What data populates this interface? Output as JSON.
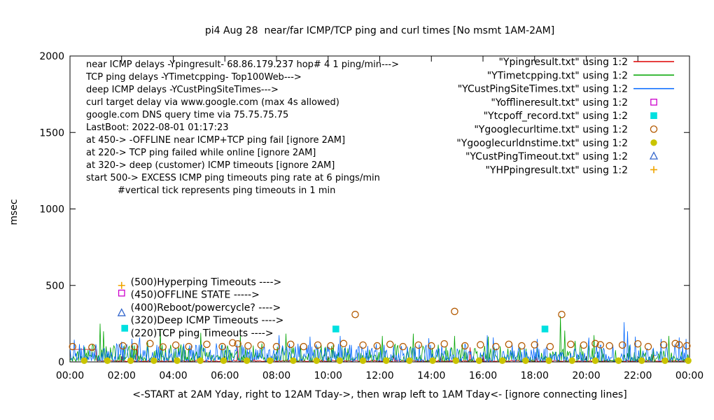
{
  "chart_data": {
    "type": "line",
    "title": "pi4 Aug 28  near/far ICMP/TCP ping and curl times [No msmt 1AM-2AM]",
    "xlabel": "<-START at 2AM Yday, right to 12AM Tday->, then wrap left to 1AM Tday<- [ignore connecting lines]",
    "ylabel": "msec",
    "xlim": [
      0,
      24
    ],
    "ylim": [
      0,
      2000
    ],
    "grid": false,
    "legend_position": "inside-top-right",
    "xticks": [
      {
        "v": 0,
        "label": "00:00"
      },
      {
        "v": 2,
        "label": "02:00"
      },
      {
        "v": 4,
        "label": "04:00"
      },
      {
        "v": 6,
        "label": "06:00"
      },
      {
        "v": 8,
        "label": "08:00"
      },
      {
        "v": 10,
        "label": "10:00"
      },
      {
        "v": 12,
        "label": "12:00"
      },
      {
        "v": 14,
        "label": "14:00"
      },
      {
        "v": 16,
        "label": "16:00"
      },
      {
        "v": 18,
        "label": "18:00"
      },
      {
        "v": 20,
        "label": "20:00"
      },
      {
        "v": 22,
        "label": "22:00"
      },
      {
        "v": 24,
        "label": "00:00"
      }
    ],
    "yticks": [
      {
        "v": 0,
        "label": "0"
      },
      {
        "v": 500,
        "label": "500"
      },
      {
        "v": 1000,
        "label": "1000"
      },
      {
        "v": 1500,
        "label": "1500"
      },
      {
        "v": 2000,
        "label": "2000"
      }
    ],
    "line_series": [
      {
        "name": "Ypingresult.txt",
        "legend": "\"Ypingresult.txt\" using 1:2",
        "color": "#dd0000",
        "baseline": 3,
        "amp": 9,
        "pow": 2.0,
        "spike_prob": 0.01,
        "spike_amp": 45,
        "seed": 101,
        "segments": [
          [
            0.0,
            1.0,
            82
          ]
        ],
        "spikes": [
          [
            2.6,
            110
          ],
          [
            6.5,
            90
          ],
          [
            15.5,
            95
          ]
        ]
      },
      {
        "name": "YTimetcpping.txt",
        "legend": "\"YTimetcpping.txt\" using 1:2",
        "color": "#00a400",
        "baseline": 4,
        "amp": 110,
        "pow": 2.6,
        "spike_prob": 0.05,
        "spike_amp": 90,
        "seed": 202,
        "segments": [],
        "spikes": [
          [
            1.15,
            250
          ],
          [
            1.3,
            200
          ],
          [
            3.5,
            205
          ],
          [
            5.05,
            190
          ],
          [
            6.6,
            175
          ],
          [
            8.35,
            185
          ],
          [
            12.1,
            170
          ],
          [
            13.3,
            185
          ],
          [
            14.9,
            170
          ],
          [
            16.2,
            165
          ],
          [
            19.0,
            300
          ],
          [
            19.15,
            205
          ],
          [
            20.3,
            175
          ],
          [
            23.2,
            170
          ]
        ]
      },
      {
        "name": "YCustPingSiteTimes.txt",
        "legend": "\"YCustPingSiteTimes.txt\" using 1:2",
        "color": "#0066ff",
        "baseline": 4,
        "amp": 115,
        "pow": 2.4,
        "spike_prob": 0.05,
        "spike_amp": 80,
        "seed": 303,
        "segments": [],
        "spikes": [
          [
            2.4,
            150
          ],
          [
            9.3,
            165
          ],
          [
            10.45,
            170
          ],
          [
            13.9,
            155
          ],
          [
            16.4,
            160
          ],
          [
            18.1,
            150
          ],
          [
            21.45,
            260
          ],
          [
            21.6,
            200
          ],
          [
            21.9,
            165
          ],
          [
            22.9,
            150
          ],
          [
            23.6,
            160
          ],
          [
            23.85,
            150
          ]
        ]
      }
    ],
    "marker_series": [
      {
        "name": "Yofflineresult.txt",
        "legend": "\"Yofflineresult.txt\" using 1:2",
        "color": "#cc00cc",
        "shape": "square-open",
        "points": [
          [
            2.0,
            450
          ]
        ]
      },
      {
        "name": "Ytcpoff_record.txt",
        "legend": "\"Ytcpoff_record.txt\" using 1:2",
        "color": "#00e0e0",
        "shape": "square-filled",
        "points": [
          [
            2.12,
            220
          ],
          [
            10.3,
            215
          ],
          [
            18.4,
            215
          ]
        ]
      },
      {
        "name": "Ygooglecurltime.txt",
        "legend": "\"Ygooglecurltime.txt\" using 1:2",
        "color": "#b35900",
        "shape": "circle-open",
        "points": [
          [
            0.1,
            100
          ],
          [
            0.85,
            95
          ],
          [
            2.05,
            105
          ],
          [
            2.5,
            100
          ],
          [
            3.1,
            120
          ],
          [
            3.6,
            98
          ],
          [
            4.1,
            110
          ],
          [
            4.6,
            100
          ],
          [
            5.3,
            115
          ],
          [
            5.9,
            100
          ],
          [
            6.3,
            125
          ],
          [
            6.5,
            118
          ],
          [
            6.9,
            105
          ],
          [
            7.4,
            110
          ],
          [
            8.0,
            100
          ],
          [
            8.55,
            115
          ],
          [
            9.05,
            100
          ],
          [
            9.6,
            110
          ],
          [
            10.1,
            105
          ],
          [
            10.6,
            120
          ],
          [
            11.05,
            310
          ],
          [
            11.35,
            110
          ],
          [
            11.9,
            105
          ],
          [
            12.4,
            115
          ],
          [
            12.9,
            100
          ],
          [
            13.5,
            110
          ],
          [
            14.0,
            105
          ],
          [
            14.5,
            118
          ],
          [
            14.9,
            330
          ],
          [
            15.3,
            105
          ],
          [
            15.9,
            112
          ],
          [
            16.5,
            100
          ],
          [
            17.0,
            115
          ],
          [
            17.5,
            105
          ],
          [
            18.0,
            112
          ],
          [
            18.6,
            100
          ],
          [
            19.05,
            310
          ],
          [
            19.4,
            115
          ],
          [
            19.9,
            110
          ],
          [
            20.35,
            120
          ],
          [
            20.55,
            112
          ],
          [
            20.9,
            105
          ],
          [
            21.4,
            110
          ],
          [
            22.0,
            118
          ],
          [
            22.4,
            100
          ],
          [
            23.0,
            112
          ],
          [
            23.45,
            120
          ],
          [
            23.6,
            112
          ],
          [
            23.9,
            105
          ]
        ]
      },
      {
        "name": "Ygooglecurldnstime.txt",
        "legend": "\"Ygooglecurldnstime.txt\" using 1:2",
        "color": "#c9c400",
        "shape": "circle-filled",
        "points": [
          [
            0.55,
            8
          ],
          [
            1.45,
            8
          ],
          [
            2.35,
            8
          ],
          [
            3.25,
            8
          ],
          [
            4.15,
            8
          ],
          [
            5.05,
            8
          ],
          [
            5.95,
            8
          ],
          [
            6.85,
            8
          ],
          [
            7.75,
            8
          ],
          [
            8.65,
            8
          ],
          [
            9.55,
            8
          ],
          [
            10.45,
            8
          ],
          [
            11.35,
            8
          ],
          [
            12.25,
            8
          ],
          [
            13.15,
            8
          ],
          [
            14.05,
            8
          ],
          [
            14.95,
            8
          ],
          [
            15.85,
            8
          ],
          [
            16.75,
            8
          ],
          [
            17.65,
            8
          ],
          [
            18.55,
            8
          ],
          [
            19.45,
            8
          ],
          [
            20.35,
            8
          ],
          [
            21.25,
            8
          ],
          [
            22.15,
            8
          ],
          [
            23.05,
            8
          ],
          [
            23.95,
            8
          ]
        ]
      },
      {
        "name": "YCustPingTimeout.txt",
        "legend": "\"YCustPingTimeout.txt\" using 1:2",
        "color": "#3366cc",
        "shape": "triangle-open",
        "points": [
          [
            2.0,
            320
          ]
        ]
      },
      {
        "name": "YHPpingresult.txt",
        "legend": "\"YHPpingresult.txt\" using 1:2",
        "color": "#f0a500",
        "shape": "plus",
        "points": [
          [
            2.0,
            500
          ]
        ]
      }
    ],
    "annotations_topleft": [
      {
        "text": "near ICMP delays -Ypingresult- 68.86.179.237 hop# 4 1 ping/min--->",
        "dx": 0
      },
      {
        "text": "TCP ping delays -YTimetcpping- Top100Web--->",
        "dx": 0
      },
      {
        "text": "deep ICMP delays -YCustPingSiteTimes--->",
        "dx": 0
      },
      {
        "text": "curl target delay via www.google.com (max 4s allowed)",
        "dx": 0
      },
      {
        "text": "google.com DNS query time via 75.75.75.75",
        "dx": 0
      },
      {
        "text": "LastBoot: 2022-08-01 01:17:23",
        "dx": 0
      },
      {
        "text": "at 450-> -OFFLINE near ICMP+TCP ping fail [ignore 2AM]",
        "dx": 0
      },
      {
        "text": "at 220-> TCP ping failed while online [ignore 2AM]",
        "dx": 0
      },
      {
        "text": "at 320-> deep (customer) ICMP timeouts [ignore 2AM]",
        "dx": 0
      },
      {
        "text": "start 500-> EXCESS ICMP ping timeouts ping rate at 6 pings/min",
        "dx": 0
      },
      {
        "text": "#vertical tick represents ping timeouts in 1 min",
        "dx": 45
      }
    ],
    "annotations_plot": [
      {
        "text": "(500)Hyperping Timeouts ---->",
        "x": 2.35,
        "y": 525
      },
      {
        "text": "(450)OFFLINE STATE ----->",
        "x": 2.35,
        "y": 442
      },
      {
        "text": "(400)Reboot/powercycle? ---->",
        "x": 2.35,
        "y": 358
      },
      {
        "text": "(320)Deep ICMP Timeouts ---->",
        "x": 2.35,
        "y": 274
      },
      {
        "text": "(220)TCP ping Timeouts ---->",
        "x": 2.35,
        "y": 191
      }
    ]
  }
}
